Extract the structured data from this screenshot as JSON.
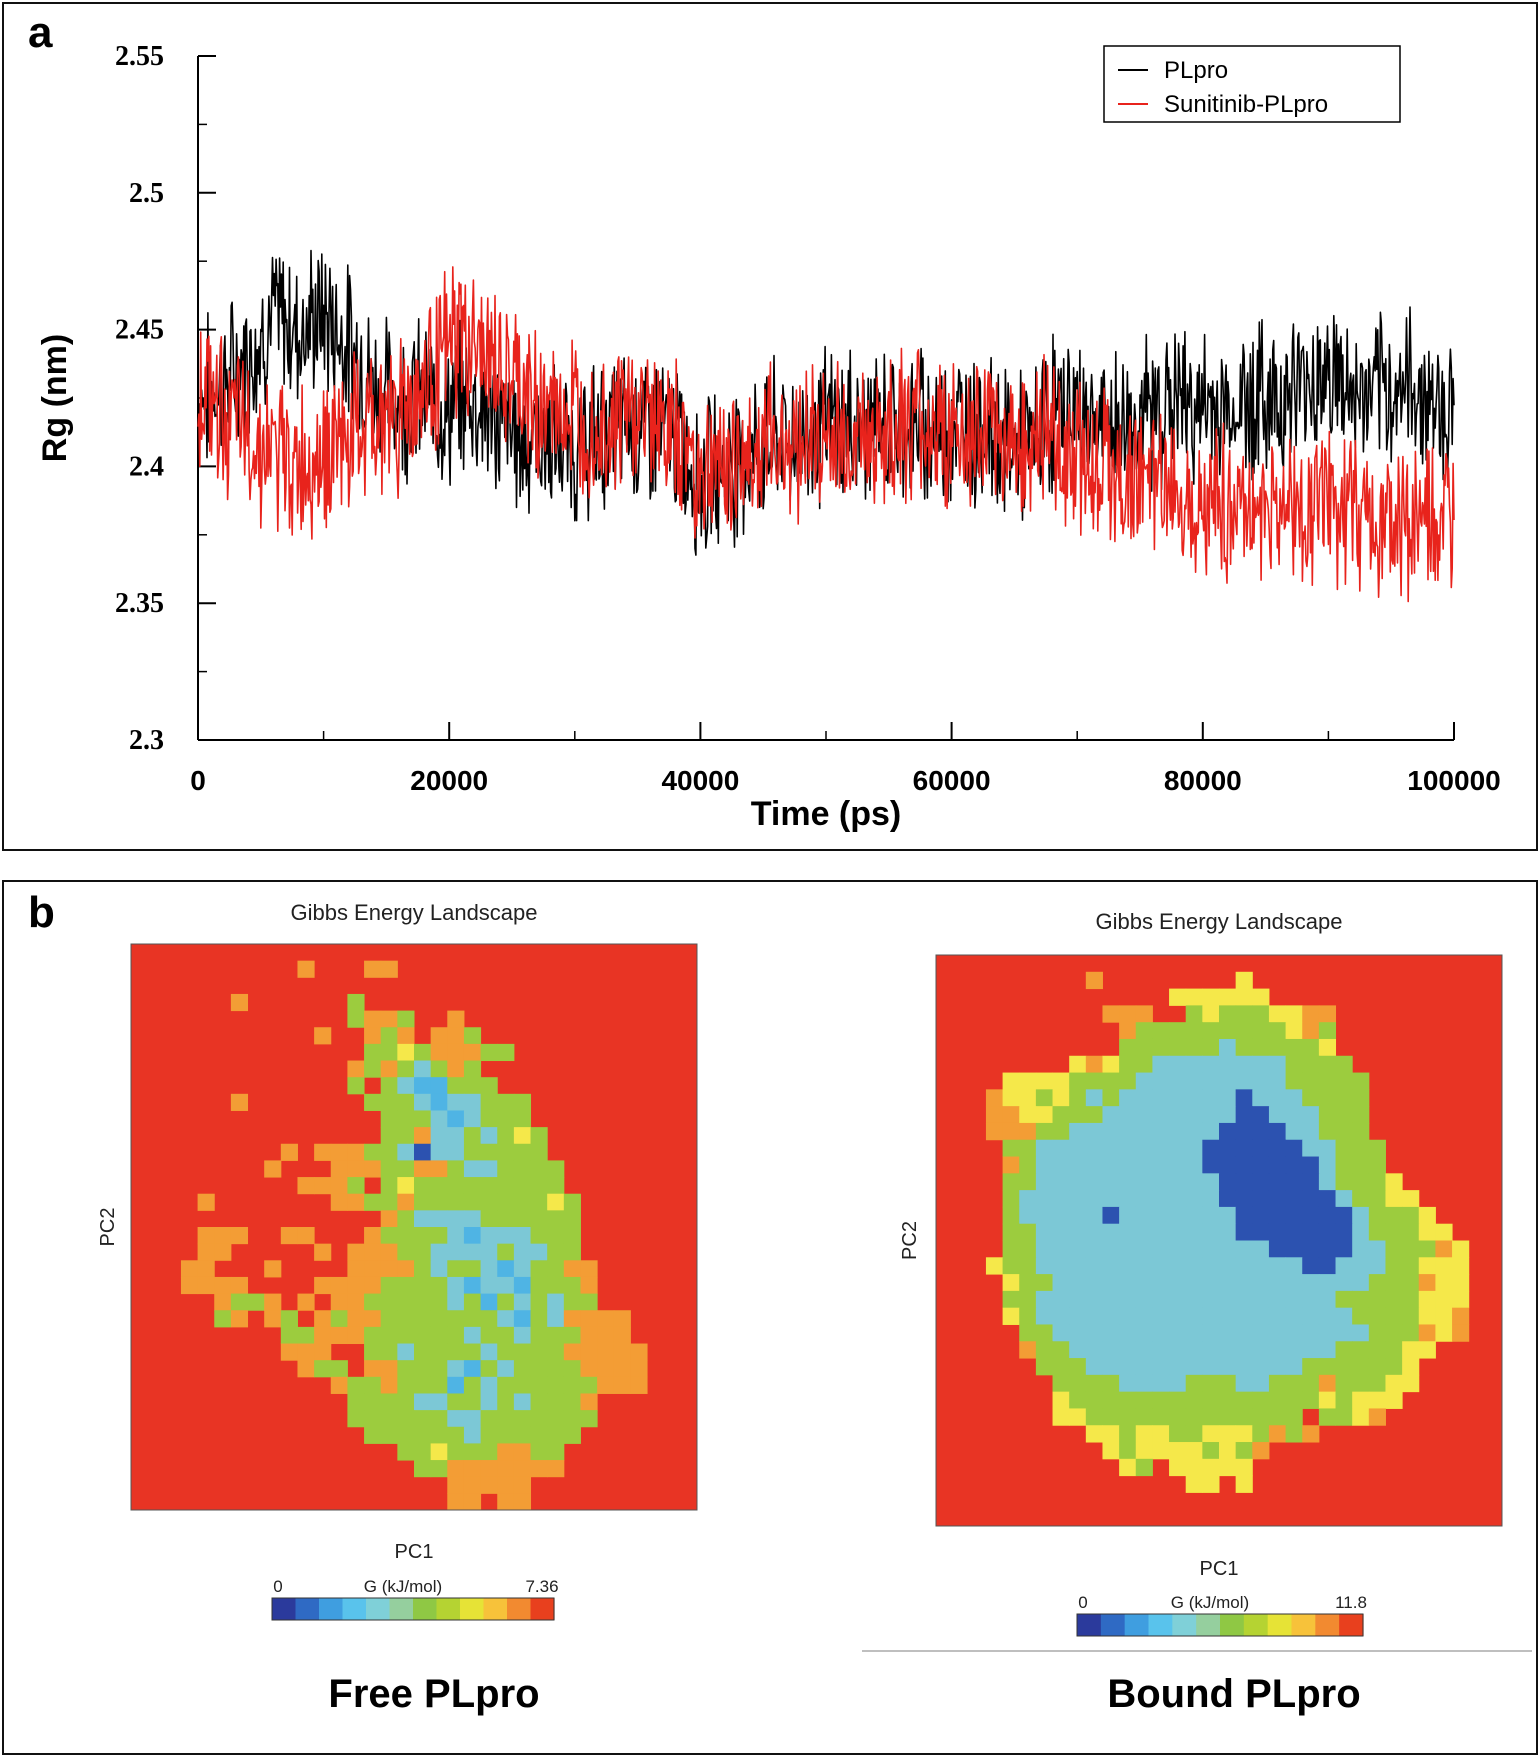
{
  "chart_data": [
    {
      "type": "line",
      "panel_label": "a",
      "xlabel": "Time (ps)",
      "ylabel": "Rg (nm)",
      "xlim": [
        0,
        100000
      ],
      "ylim": [
        2.3,
        2.55
      ],
      "xticks": [
        0,
        20000,
        40000,
        60000,
        80000,
        100000
      ],
      "xtick_labels": [
        "0",
        "20000",
        "40000",
        "60000",
        "80000",
        "100000"
      ],
      "yticks": [
        2.3,
        2.35,
        2.4,
        2.45,
        2.5,
        2.55
      ],
      "ytick_labels": [
        "2.3",
        "2.35",
        "2.4",
        "2.45",
        "2.5",
        "2.55"
      ],
      "legend_position": "top-right",
      "series": [
        {
          "name": "PLpro",
          "color": "#000000",
          "x": [
            0,
            2000,
            4000,
            6000,
            8000,
            10000,
            12000,
            14000,
            16000,
            18000,
            20000,
            22000,
            24000,
            26000,
            28000,
            30000,
            32000,
            34000,
            36000,
            38000,
            40000,
            42000,
            44000,
            46000,
            48000,
            50000,
            52000,
            54000,
            56000,
            58000,
            60000,
            62000,
            64000,
            66000,
            68000,
            70000,
            72000,
            74000,
            76000,
            78000,
            80000,
            82000,
            84000,
            86000,
            88000,
            90000,
            92000,
            94000,
            96000,
            98000,
            100000
          ],
          "y": [
            2.425,
            2.43,
            2.44,
            2.455,
            2.45,
            2.455,
            2.445,
            2.43,
            2.425,
            2.425,
            2.42,
            2.425,
            2.415,
            2.41,
            2.41,
            2.405,
            2.41,
            2.415,
            2.415,
            2.41,
            2.395,
            2.4,
            2.405,
            2.41,
            2.41,
            2.415,
            2.415,
            2.415,
            2.415,
            2.415,
            2.415,
            2.415,
            2.41,
            2.405,
            2.42,
            2.42,
            2.415,
            2.415,
            2.42,
            2.425,
            2.42,
            2.42,
            2.425,
            2.425,
            2.43,
            2.435,
            2.425,
            2.425,
            2.43,
            2.425,
            2.42
          ]
        },
        {
          "name": "Sunitinib-PLpro",
          "color": "#e8231c",
          "x": [
            0,
            2000,
            4000,
            6000,
            8000,
            10000,
            12000,
            14000,
            16000,
            18000,
            20000,
            22000,
            24000,
            26000,
            28000,
            30000,
            32000,
            34000,
            36000,
            38000,
            40000,
            42000,
            44000,
            46000,
            48000,
            50000,
            52000,
            54000,
            56000,
            58000,
            60000,
            62000,
            64000,
            66000,
            68000,
            70000,
            72000,
            74000,
            76000,
            78000,
            80000,
            82000,
            84000,
            86000,
            88000,
            90000,
            92000,
            94000,
            96000,
            98000,
            100000
          ],
          "y": [
            2.43,
            2.42,
            2.41,
            2.405,
            2.4,
            2.405,
            2.41,
            2.415,
            2.42,
            2.43,
            2.445,
            2.445,
            2.435,
            2.425,
            2.42,
            2.42,
            2.415,
            2.42,
            2.42,
            2.41,
            2.4,
            2.4,
            2.405,
            2.41,
            2.41,
            2.41,
            2.41,
            2.41,
            2.415,
            2.415,
            2.41,
            2.41,
            2.41,
            2.41,
            2.41,
            2.405,
            2.4,
            2.395,
            2.395,
            2.39,
            2.39,
            2.385,
            2.385,
            2.385,
            2.385,
            2.385,
            2.385,
            2.38,
            2.38,
            2.38,
            2.375
          ]
        }
      ]
    },
    {
      "type": "heatmap",
      "panel_label": "b",
      "title": "Gibbs Energy Landscape",
      "xlabel": "PC1",
      "ylabel": "PC2",
      "colorbar_label": "G (kJ/mol)",
      "colorbar_range": [
        0,
        7.36
      ],
      "colorbar_min_label": "0",
      "colorbar_max_label": "7.36",
      "caption": "Free PLpro",
      "grid": [
        "RRRRRRRRRRRRRRRRRRRRRRRRRRRRRRRRRR",
        "RRRRRRRRRRORRROORRRRRRRRRRRRRRRRRR",
        "RRRRRRRRRRRRRRRRRRRRRRRRRRRRRRRRRR",
        "RRRRRRORRRRRRGRRRRRRRRRRRRRRRRRRRR",
        "RRRRRRRRRRRRRGOOGRRORRRRRRRRRRRRRR",
        "RRRRRRRRRRRORROGOROOGRRRRRRRRRRRRR",
        "RRRRRRRRRRRRRRGGYGOOOGGRRRRRRRRRRR",
        "RRRRRRRRRRRRROGOGCGOGRRRRRRRRRRRRR",
        "RRRRRRRRRRRRRGRGCLLGGGRRRRRRRRRRRR",
        "RRRRRRORRRRRRRGGGCLCCGGGRRRRRRRRRR",
        "RRRRRRRRRRRRRRRGGGCLCGGGRRRRRRRRRR",
        "RRRRRRRRRRRRRRRGGOCCGCGYGRRRRRRRRR",
        "RRRRRRRRROROOOGGCDCCGGGGGRRRRRRRRR",
        "RRRRRRRRORRROOOGGOOGCCGGGGRRRRRRRR",
        "RRRRRRRRRROOOGRGYGGGGGGGGGRRRRRRRR",
        "RRRRORRRRRRROOGGOGGGGGGGGYGRRRRRRR",
        "RRRRRRRRRRRRRRROGCCCCGGGGGGRRRRRRR",
        "RRRROOORROORRROGGGGCLCCCGGGRRRRRRR",
        "RRRROORRRRROROOOGGCCCCGCCGGRRRRRRR",
        "RRROORRRORRRROOOOGCGGCLCGGOORRRRRR",
        "RRROOOORRRROOOOGGGGCLCCLGGGORRRRRR",
        "RRRRROGGOROROOGGGGGCGLGCGCGGRRRRRR",
        "RRRRRGOROGROGOOGGGGGGGCLGCOOOORRRR",
        "RRRRRRRRRGGOOOGGGGGGCGGCGGGOOORRRR",
        "RRRRRRRRROOORRGGCGGGGCGGGGOOOOORRR",
        "RRRRRRRRRROGGROOGGGCLGCGGGGOOOORRR",
        "RRRRRRRRRRRROGGOGGGLGCGGGGGGOOORRR",
        "RRRRRRRRRRRRRGGGGCCGGCGCGGGORRRRRR",
        "RRRRRRRRRRRRRGGGGGGCCGGGGGGGRRRRRR",
        "RRRRRRRRRRRRRRGGGGGGCGGGGGGRRRRRRR",
        "RRRRRRRRRRRRRRRRGGYGGGOOGGRRRRRRRR",
        "RRRRRRRRRRRRRRRRRGGOOOOOOORRRRRRRR",
        "RRRRRRRRRRRRRRRRRRROOOOORRRRRRRRRR",
        "RRRRRRRRRRRRRRRRRRROOROORRRRRRRRRR"
      ]
    },
    {
      "type": "heatmap",
      "panel_label": "b",
      "title": "Gibbs Energy Landscape",
      "xlabel": "PC1",
      "ylabel": "PC2",
      "colorbar_label": "G (kJ/mol)",
      "colorbar_range": [
        0,
        11.8
      ],
      "colorbar_min_label": "0",
      "colorbar_max_label": "11.8",
      "caption": "Bound PLpro",
      "grid": [
        "RRRRRRRRRRRRRRRRRRRRRRRRRRRRRRRRRR",
        "RRRRRRRRRORRRRRRRRYRRRRRRRRRRRRRRR",
        "RRRRRRRRRRRRRRYYYYYYRRRRRRRRRRRRRR",
        "RRRRRRRRRROOORRGYGGGYYOORRRRRRRRRR",
        "RRRRRRRRRRROGGGGGGGGGYOGRRRRRRRRRR",
        "RRRRRRRRRRRGGGGGGCGGGGGYRRRRRRRRRR",
        "RRRRRRRRYOYGGCCCCCCCCGGGGRRRRRRRRR",
        "RRRRYYYYGGGGCCCCCCCCCGGGGGRRRRRRRR",
        "RRROYYGYGCGCCCCCCCDCCCGGGGRRRRRRRR",
        "RRROOYYGGGCCCCCCCCDDCCCGGGRRRRRRRR",
        "RRROOOGGCCCCCCCCCDDDDCCGGGRRRRRRRR",
        "RRRRGGCCCCCCCCCCDDDDDDCCGGGRRRRRRR",
        "RRRROGCCCCCCCCCCDDDDDDDCGGGRRRRRRR",
        "RRRRGGCCCCCCCCCCCDDDDDDCGGGYRRRRRR",
        "RRRRGCCCCCCCCCCCCDDDDDDDCGGYYRRRRR",
        "RRRRGCCCCCDCCCCCCCDDDDDDDCGGGYRRRR",
        "RRRRGGCCCCCCCCCCCCDDDDDDDCGGGYYRRR",
        "RRRRGGCCCCCCCCCCCCCCDDDDDCCGGGOYRR",
        "RRRYGGCCCCCCCCCCCCCCCCDDCCCGGYYYRR",
        "RRRRYGGCCCCCCCCCCCCCCCCCCCGGGOYYRR",
        "RRRRGGCCCCCCCCCCCCCCCCCCGGGGGYYYRR",
        "RRRRYGCCCCCCCCCCCCCCCCCCCGGGGYYORR",
        "RRRRRGGCCCCCCCCCCCCCCCCCCCGGGOYORR",
        "RRRRROGGCCCCCCCCCCCCCCCCGGGGYYRRRR",
        "RRRRRRGGGCCCCCCCCCCCCCGGGGGGYRRRRR",
        "RRRRRRRGGGGCCCCGGGCCGGGOGGGYYRRRRR",
        "RRRRRRRYGGGGGGGGGGGGGGGYGYYYRRRRRR",
        "RRRRRRRYYGGGGGGGGGGGGGRGGYORRRRRRR",
        "RRRRRRRRRYYGYYGGYYYGOGORRRRRRRRRRR",
        "RRRRRRRRRRYGYYYYGYGORRRRRRRRRRRRRR",
        "RRRRRRRRRRRYGRYYYYYRRRRRRRRRRRRRRR",
        "RRRRRRRRRRRRRRRYYRYRRRRRRRRRRRRRRR",
        "RRRRRRRRRRRRRRRRRRRRRRRRRRRRRRRRRR",
        "RRRRRRRRRRRRRRRRRRRRRRRRRRRRRRRRRR"
      ]
    }
  ],
  "palette": {
    "R": "#e83424",
    "O": "#f39d35",
    "Y": "#f5e84a",
    "G": "#9ccc3e",
    "C": "#7cc8d6",
    "L": "#4fb4e4",
    "D": "#2c52b0"
  },
  "colorbar_colors": [
    "#2b3a9c",
    "#2f6ac4",
    "#3f9ee0",
    "#59c3ec",
    "#7fd0d8",
    "#95cf9e",
    "#8fc844",
    "#b5d332",
    "#e6e336",
    "#f7c23a",
    "#f28a30",
    "#e8401e"
  ]
}
